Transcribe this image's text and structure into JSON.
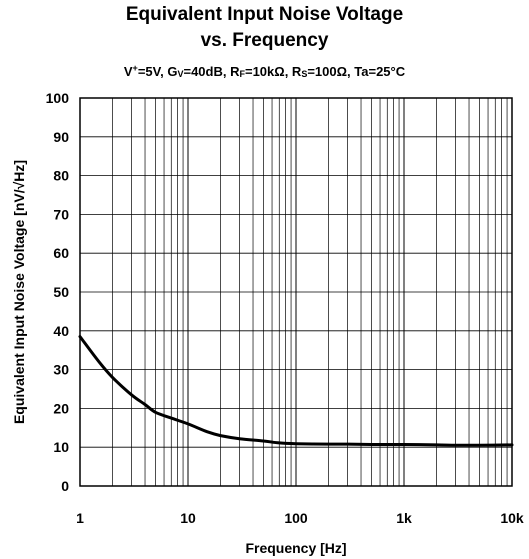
{
  "chart_data": {
    "type": "line",
    "title_line1": "Equivalent Input Noise Voltage",
    "title_line2": "vs. Frequency",
    "conditions": {
      "v_label": "V",
      "v_sup": "+",
      "v_value": "=5V, ",
      "g_label": "G",
      "g_sub": "V",
      "g_value": "=40dB, ",
      "rf_label": "R",
      "rf_sub": "F",
      "rf_value": "=10kΩ, ",
      "rs_label": "R",
      "rs_sub": "S",
      "rs_value": "=100Ω, ",
      "ta": "Ta=25°C"
    },
    "xlabel": "Frequency [Hz]",
    "ylabel": "Equivalent Input Noise Voltage [nV/√Hz]",
    "x_scale": "log",
    "xlim": [
      1,
      10000
    ],
    "ylim": [
      0,
      100
    ],
    "x_ticks": [
      {
        "value": 1,
        "label": "1"
      },
      {
        "value": 10,
        "label": "10"
      },
      {
        "value": 100,
        "label": "100"
      },
      {
        "value": 1000,
        "label": "1k"
      },
      {
        "value": 10000,
        "label": "10k"
      }
    ],
    "y_ticks": [
      {
        "value": 0,
        "label": "0"
      },
      {
        "value": 10,
        "label": "10"
      },
      {
        "value": 20,
        "label": "20"
      },
      {
        "value": 30,
        "label": "30"
      },
      {
        "value": 40,
        "label": "40"
      },
      {
        "value": 50,
        "label": "50"
      },
      {
        "value": 60,
        "label": "60"
      },
      {
        "value": 70,
        "label": "70"
      },
      {
        "value": 80,
        "label": "80"
      },
      {
        "value": 90,
        "label": "90"
      },
      {
        "value": 100,
        "label": "100"
      }
    ],
    "grid": true,
    "line_color": "#000000",
    "series": [
      {
        "x": [
          1,
          1.5,
          2,
          3,
          4,
          5,
          7,
          10,
          15,
          20,
          30,
          50,
          70,
          100,
          200,
          300,
          500,
          1000,
          2000,
          3000,
          5000,
          10000
        ],
        "y": [
          38.5,
          32,
          28,
          23.5,
          21,
          19,
          17.5,
          16,
          14,
          13,
          12.2,
          11.6,
          11.1,
          10.9,
          10.8,
          10.8,
          10.7,
          10.7,
          10.6,
          10.5,
          10.5,
          10.6
        ]
      }
    ]
  }
}
